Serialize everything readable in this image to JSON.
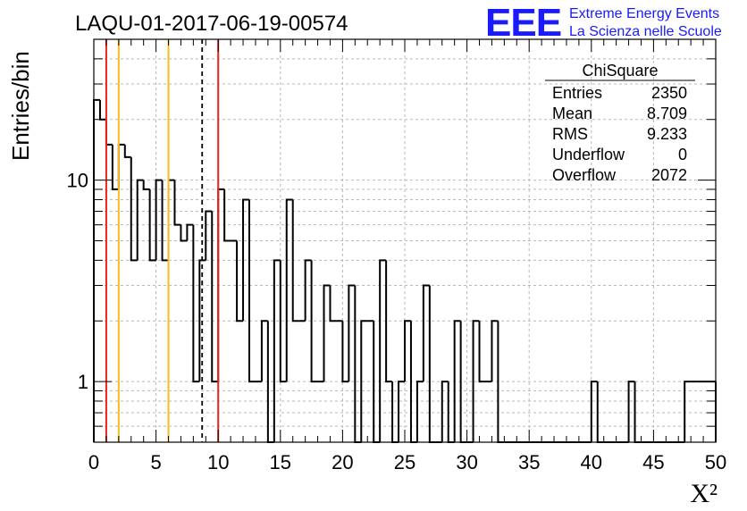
{
  "chart_data": {
    "type": "bar",
    "title": "LAQU-01-2017-06-19-00574",
    "xlabel": "X²",
    "ylabel": "Entries/bin",
    "xlim": [
      0,
      50
    ],
    "ylim": [
      0.5,
      50
    ],
    "log_y": true,
    "grid": true,
    "bin_width": 0.5,
    "x_ticks": [
      "0",
      "5",
      "10",
      "15",
      "20",
      "25",
      "30",
      "35",
      "40",
      "45",
      "50"
    ],
    "y_ticks": [
      "1",
      "10"
    ],
    "values": [
      25,
      20,
      15,
      9,
      15,
      13,
      4,
      10,
      9,
      4,
      10,
      4,
      10,
      6,
      5,
      6,
      1,
      4,
      7,
      1,
      9,
      5,
      5,
      2,
      8,
      1,
      1,
      2,
      0,
      4,
      1,
      8,
      2,
      2,
      4,
      1,
      1,
      3,
      2,
      2,
      1,
      3,
      0,
      2,
      2,
      0,
      4,
      1,
      0,
      1,
      2,
      0,
      1,
      3,
      0,
      0,
      1,
      0,
      2,
      0,
      0,
      2,
      1,
      1,
      2,
      0,
      0,
      0,
      0,
      0,
      0,
      0,
      0,
      0,
      0,
      0,
      0,
      0,
      0,
      0,
      1,
      0,
      0,
      0,
      0,
      0,
      1,
      0,
      0,
      0,
      0,
      0,
      0,
      0,
      0,
      1,
      1,
      1,
      1,
      1
    ],
    "vertical_lines": [
      {
        "x": 1,
        "color": "#e8261c",
        "style": "solid"
      },
      {
        "x": 2,
        "color": "#f0c020",
        "style": "solid"
      },
      {
        "x": 6,
        "color": "#f0c020",
        "style": "solid"
      },
      {
        "x": 8.709,
        "color": "#000000",
        "style": "dashed"
      },
      {
        "x": 10,
        "color": "#e8261c",
        "style": "solid"
      }
    ],
    "stats": {
      "title": "ChiSquare",
      "rows": [
        {
          "label": "Entries",
          "value": "2350"
        },
        {
          "label": "Mean",
          "value": "8.709"
        },
        {
          "label": "RMS",
          "value": "9.233"
        },
        {
          "label": "Underflow",
          "value": "0"
        },
        {
          "label": "Overflow",
          "value": "2072"
        }
      ]
    }
  },
  "logo": {
    "big": "EEE",
    "line1": "Extreme Energy Events",
    "line2": "La Scienza nelle Scuole",
    "color": "#1a1aff"
  }
}
